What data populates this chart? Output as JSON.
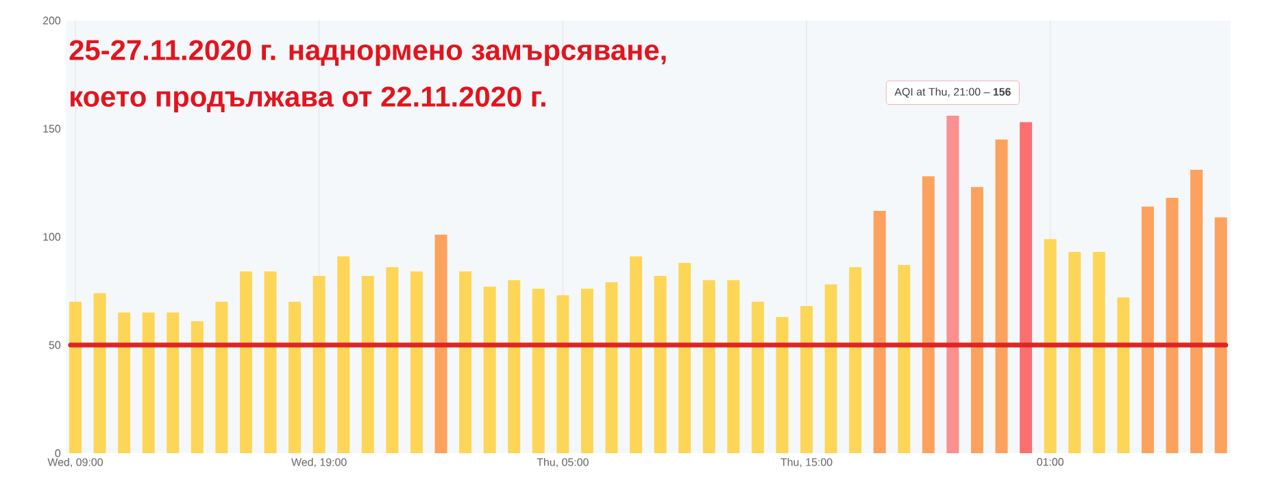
{
  "chart_data": {
    "type": "bar",
    "title": "25-27.11.2020 г. наднормено замърсяване,",
    "subtitle": "което продължава от 22.11.2020 г.",
    "categories": [
      "Wed, 09:00",
      null,
      null,
      null,
      null,
      null,
      null,
      null,
      null,
      null,
      "Wed, 19:00",
      null,
      null,
      null,
      null,
      null,
      null,
      null,
      null,
      null,
      "Thu, 05:00",
      null,
      null,
      null,
      null,
      null,
      null,
      null,
      null,
      null,
      "Thu, 15:00",
      null,
      null,
      null,
      null,
      null,
      null,
      null,
      null,
      null,
      "01:00",
      null,
      null,
      null,
      null,
      null,
      null,
      null
    ],
    "values": [
      70,
      74,
      65,
      65,
      65,
      61,
      70,
      84,
      84,
      70,
      82,
      91,
      82,
      86,
      84,
      101,
      84,
      77,
      80,
      76,
      73,
      76,
      79,
      91,
      82,
      88,
      80,
      80,
      70,
      63,
      68,
      78,
      86,
      112,
      87,
      128,
      156,
      123,
      145,
      153,
      99,
      93,
      93,
      72,
      114,
      118,
      131,
      109
    ],
    "colors": [
      "#fdd657",
      "#fdd657",
      "#fdd657",
      "#fdd657",
      "#fdd657",
      "#fdd657",
      "#fdd657",
      "#fdd657",
      "#fdd657",
      "#fdd657",
      "#fdd657",
      "#fdd657",
      "#fdd657",
      "#fdd657",
      "#fdd657",
      "#fda25e",
      "#fdd657",
      "#fdd657",
      "#fdd657",
      "#fdd657",
      "#fdd657",
      "#fdd657",
      "#fdd657",
      "#fdd657",
      "#fdd657",
      "#fdd657",
      "#fdd657",
      "#fdd657",
      "#fdd657",
      "#fdd657",
      "#fdd657",
      "#fdd657",
      "#fdd657",
      "#fda25e",
      "#fdd657",
      "#fda25e",
      "#fc8f8f",
      "#fda25e",
      "#fda25e",
      "#fa7070",
      "#fdd657",
      "#fdd657",
      "#fdd657",
      "#fdd657",
      "#fda25e",
      "#fda25e",
      "#fda25e",
      "#fda25e"
    ],
    "ylim": [
      0,
      200
    ],
    "yticks": [
      0,
      50,
      100,
      150,
      200
    ],
    "grid": "x",
    "ref_lines": [
      {
        "axis": "y",
        "value": 50,
        "color": "#e02424"
      }
    ],
    "annotations": [
      "AQI at Thu, 21:00 – **156**"
    ]
  }
}
